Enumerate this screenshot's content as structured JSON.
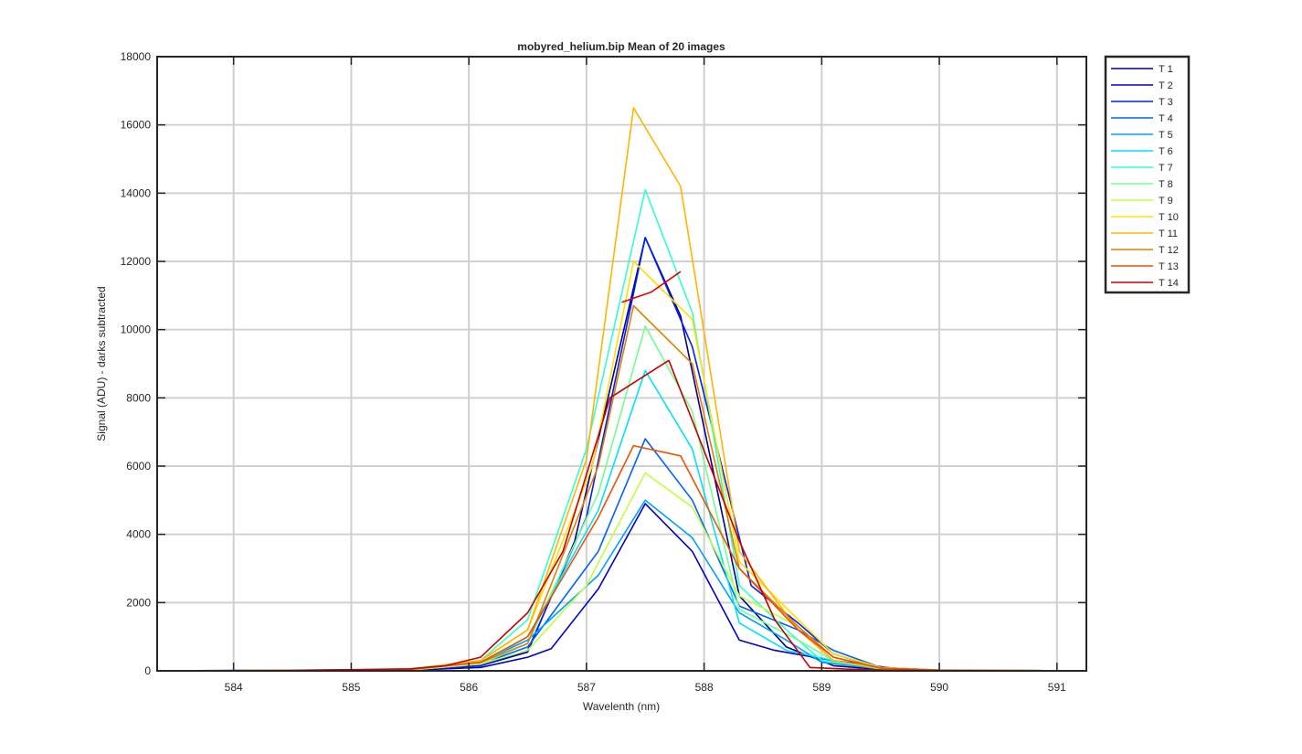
{
  "chart_data": {
    "type": "line",
    "title": "mobyred_helium.bip  Mean of 20 images",
    "xlabel": "Wavelenth (nm)",
    "ylabel": "Signal (ADU) - darks subtracted",
    "xlim": [
      583.35,
      591.25
    ],
    "ylim": [
      0,
      18000
    ],
    "xticks": [
      584,
      585,
      586,
      587,
      588,
      589,
      590,
      591
    ],
    "yticks": [
      0,
      2000,
      4000,
      6000,
      8000,
      10000,
      12000,
      14000,
      16000,
      18000
    ],
    "grid": true,
    "legend_position": "outside-top-right",
    "series": [
      {
        "name": "T 1",
        "color": "#00008f",
        "x": [
          583.35,
          584.5,
          585.5,
          586.1,
          586.5,
          586.9,
          587.5,
          587.8,
          588.3,
          588.7,
          589.1,
          589.5,
          590,
          591.25
        ],
        "y": [
          0,
          20,
          30,
          150,
          550,
          3800,
          12700,
          10400,
          2200,
          700,
          150,
          40,
          10,
          0
        ]
      },
      {
        "name": "T 2",
        "color": "#0000c8",
        "x": [
          583.35,
          584.5,
          585.5,
          586.1,
          586.5,
          586.7,
          587.1,
          587.5,
          587.9,
          588.3,
          588.6,
          589.1,
          589.6,
          590,
          591.25
        ],
        "y": [
          0,
          10,
          20,
          100,
          400,
          650,
          2400,
          4900,
          3500,
          900,
          600,
          300,
          80,
          20,
          0
        ]
      },
      {
        "name": "T 3",
        "color": "#0020f0",
        "x": [
          583.35,
          584.5,
          585.5,
          586.1,
          586.5,
          587,
          587.5,
          587.9,
          588.4,
          588.8,
          589.1,
          589.5,
          590,
          591.25
        ],
        "y": [
          0,
          10,
          30,
          150,
          600,
          4500,
          12700,
          9500,
          2500,
          1400,
          500,
          80,
          20,
          0
        ]
      },
      {
        "name": "T 4",
        "color": "#0060ff",
        "x": [
          583.35,
          584.5,
          585.5,
          586.1,
          586.5,
          587.1,
          587.5,
          587.9,
          588.3,
          588.8,
          589.1,
          589.5,
          590,
          591.25
        ],
        "y": [
          0,
          10,
          30,
          200,
          700,
          3500,
          6800,
          5000,
          1900,
          1200,
          600,
          100,
          20,
          0
        ]
      },
      {
        "name": "T 5",
        "color": "#00a0ff",
        "x": [
          583.35,
          584.5,
          585.5,
          586.1,
          586.5,
          587.1,
          587.5,
          587.9,
          588.3,
          588.7,
          589,
          589.5,
          590,
          591.25
        ],
        "y": [
          0,
          10,
          30,
          250,
          900,
          2800,
          5000,
          3900,
          1700,
          900,
          250,
          60,
          20,
          0
        ]
      },
      {
        "name": "T 6",
        "color": "#00e0ff",
        "x": [
          583.35,
          584.5,
          585.5,
          586.1,
          586.5,
          587.1,
          587.5,
          587.9,
          588.3,
          588.7,
          589.1,
          589.5,
          590,
          591.25
        ],
        "y": [
          0,
          10,
          30,
          200,
          1000,
          4700,
          8800,
          6500,
          1400,
          600,
          300,
          60,
          20,
          0
        ]
      },
      {
        "name": "T 7",
        "color": "#30ffd0",
        "x": [
          583.35,
          584.5,
          585.5,
          586.1,
          586.5,
          587,
          587.5,
          587.9,
          588.3,
          588.7,
          589,
          589.5,
          590,
          591.25
        ],
        "y": [
          0,
          10,
          30,
          300,
          1500,
          6500,
          14100,
          10500,
          2500,
          1200,
          300,
          80,
          20,
          0
        ]
      },
      {
        "name": "T 8",
        "color": "#70ff90",
        "x": [
          583.35,
          584.5,
          585.5,
          586.1,
          586.5,
          587.1,
          587.5,
          587.9,
          588.3,
          588.8,
          589.1,
          589.5,
          590,
          591.25
        ],
        "y": [
          0,
          10,
          30,
          200,
          800,
          5200,
          10100,
          7600,
          1800,
          900,
          300,
          60,
          20,
          0
        ]
      },
      {
        "name": "T 9",
        "color": "#c0ff40",
        "x": [
          583.35,
          584.5,
          585.5,
          586.1,
          586.5,
          587,
          587.5,
          587.9,
          588.3,
          588.8,
          589.1,
          589.5,
          590,
          591.25
        ],
        "y": [
          0,
          10,
          30,
          200,
          600,
          2500,
          5800,
          4800,
          2200,
          1300,
          400,
          80,
          20,
          0
        ]
      },
      {
        "name": "T 10",
        "color": "#ffe000",
        "x": [
          583.35,
          584.5,
          585.5,
          586.1,
          586.5,
          587.05,
          587.4,
          587.9,
          588.3,
          588.8,
          589.1,
          589.5,
          590,
          591.25
        ],
        "y": [
          0,
          10,
          40,
          300,
          1200,
          6000,
          12000,
          10300,
          3200,
          1500,
          500,
          100,
          20,
          0
        ]
      },
      {
        "name": "T 11",
        "color": "#ffb400",
        "x": [
          583.35,
          584.5,
          585.5,
          586.1,
          586.5,
          587,
          587.4,
          587.8,
          588.3,
          588.8,
          589.1,
          589.5,
          590,
          591.25
        ],
        "y": [
          0,
          10,
          50,
          300,
          1200,
          6200,
          16500,
          14200,
          3500,
          1200,
          300,
          80,
          20,
          0
        ]
      },
      {
        "name": "T 12",
        "color": "#e08000",
        "x": [
          583.35,
          584.5,
          585.5,
          586.1,
          586.5,
          587.1,
          587.4,
          587.9,
          588.3,
          588.8,
          589.1,
          589.5,
          590,
          591.25
        ],
        "y": [
          0,
          10,
          40,
          250,
          800,
          6000,
          10700,
          9000,
          3000,
          1300,
          400,
          80,
          20,
          0
        ]
      },
      {
        "name": "T 13",
        "color": "#f05000",
        "x": [
          583.35,
          584.5,
          585.5,
          586.1,
          586.5,
          587.1,
          587.4,
          587.8,
          588.3,
          588.8,
          589.1,
          589.5,
          590,
          591.25
        ],
        "y": [
          0,
          10,
          40,
          250,
          1000,
          4500,
          6600,
          6300,
          3000,
          1200,
          400,
          80,
          20,
          0
        ]
      },
      {
        "name": "T 14",
        "color": "#c80000",
        "x": [
          583.35,
          584.5,
          585.5,
          585.8,
          586.1,
          586.5,
          586.8,
          587.2,
          587.7,
          588.3,
          588.6,
          588.9,
          589.2,
          589.6,
          590,
          591.25
        ],
        "y": [
          0,
          10,
          60,
          150,
          400,
          1700,
          3500,
          8000,
          9100,
          3800,
          1500,
          100,
          50,
          20,
          10,
          0
        ]
      },
      {
        "name": "T 14",
        "color": "#e00000",
        "x": [
          587.3,
          587.55,
          587.8
        ],
        "y": [
          10800,
          11100,
          11700
        ]
      }
    ]
  }
}
